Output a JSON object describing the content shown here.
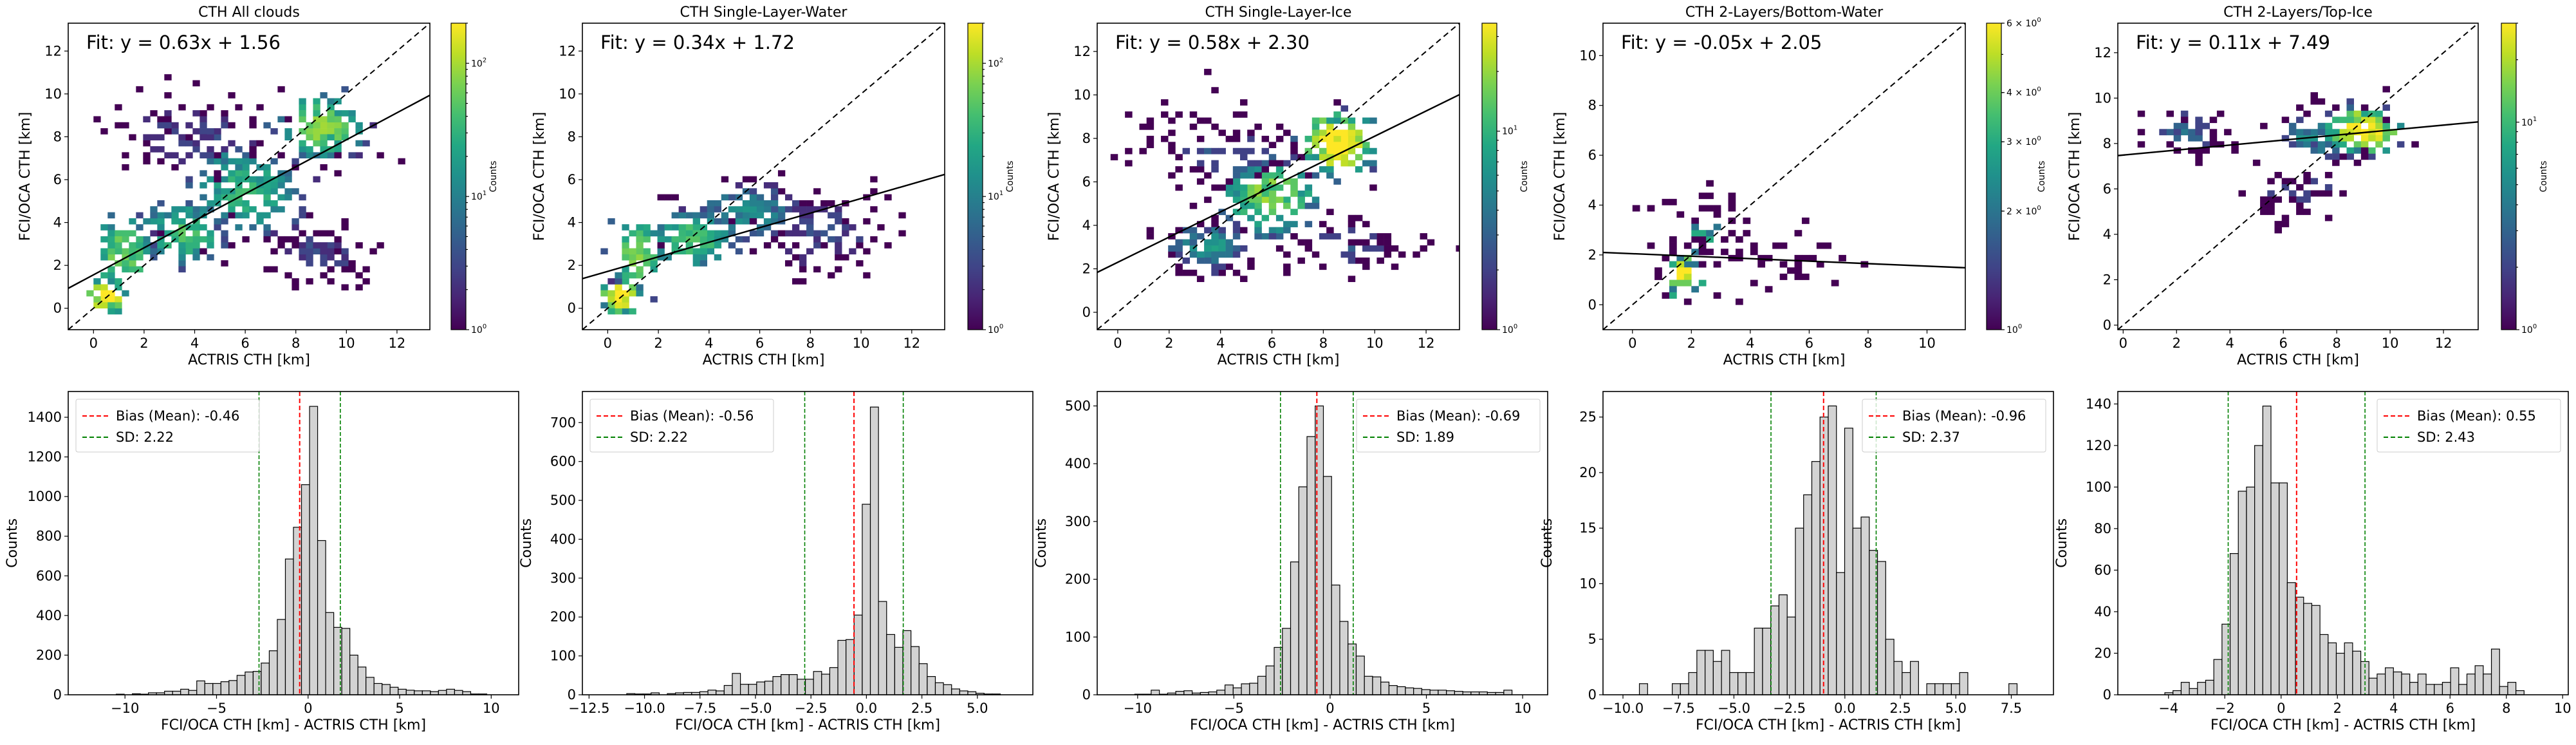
{
  "chart_data": [
    {
      "type": "heatmap",
      "title": "CTH All clouds",
      "xlabel": "ACTRIS CTH [km]",
      "ylabel": "FCI/OCA CTH [km]",
      "xlim": [
        -1.0,
        13.3
      ],
      "ylim": [
        -1.0,
        13.3
      ],
      "xticks": [
        0,
        2,
        4,
        6,
        8,
        10,
        12
      ],
      "yticks": [
        0,
        2,
        4,
        6,
        8,
        10,
        12
      ],
      "fit": {
        "slope": 0.63,
        "intercept": 1.56,
        "label": "Fit: y = 0.63x + 1.56"
      },
      "one_to_one_line": true,
      "colorbar": {
        "label": "Counts",
        "scale": "log",
        "min": 1,
        "max": 200,
        "ticks": [
          {
            "value": 1,
            "label": "10^0"
          },
          {
            "value": 10,
            "label": "10^1"
          },
          {
            "value": 100,
            "label": "10^2"
          }
        ]
      },
      "bin_size_km": 0.28,
      "clusters": [
        {
          "x": 0.5,
          "y": 0.6,
          "sx": 0.5,
          "sy": 0.6,
          "peak": 180,
          "n": 40
        },
        {
          "x": 1.2,
          "y": 2.5,
          "sx": 0.8,
          "sy": 1.2,
          "peak": 60,
          "n": 70
        },
        {
          "x": 3.5,
          "y": 3.5,
          "sx": 1.2,
          "sy": 1.0,
          "peak": 40,
          "n": 90
        },
        {
          "x": 6.0,
          "y": 5.5,
          "sx": 1.6,
          "sy": 1.5,
          "peak": 30,
          "n": 160
        },
        {
          "x": 9.0,
          "y": 8.5,
          "sx": 1.2,
          "sy": 1.0,
          "peak": 70,
          "n": 120
        },
        {
          "x": 4.0,
          "y": 8.0,
          "sx": 2.5,
          "sy": 1.4,
          "peak": 3,
          "n": 110
        },
        {
          "x": 9.0,
          "y": 2.5,
          "sx": 1.8,
          "sy": 1.2,
          "peak": 3,
          "n": 70
        }
      ]
    },
    {
      "type": "heatmap",
      "title": "CTH Single-Layer-Water",
      "xlabel": "ACTRIS CTH [km]",
      "ylabel": "FCI/OCA CTH [km]",
      "xlim": [
        -1.0,
        13.3
      ],
      "ylim": [
        -1.0,
        13.3
      ],
      "xticks": [
        0,
        2,
        4,
        6,
        8,
        10,
        12
      ],
      "yticks": [
        0,
        2,
        4,
        6,
        8,
        10,
        12
      ],
      "fit": {
        "slope": 0.34,
        "intercept": 1.72,
        "label": "Fit: y = 0.34x + 1.72"
      },
      "one_to_one_line": true,
      "colorbar": {
        "label": "Counts",
        "scale": "log",
        "min": 1,
        "max": 200,
        "ticks": [
          {
            "value": 1,
            "label": "10^0"
          },
          {
            "value": 10,
            "label": "10^1"
          },
          {
            "value": 100,
            "label": "10^2"
          }
        ]
      },
      "bin_size_km": 0.28,
      "clusters": [
        {
          "x": 0.5,
          "y": 0.6,
          "sx": 0.5,
          "sy": 0.6,
          "peak": 180,
          "n": 40
        },
        {
          "x": 1.2,
          "y": 2.5,
          "sx": 0.8,
          "sy": 1.2,
          "peak": 60,
          "n": 70
        },
        {
          "x": 3.3,
          "y": 3.2,
          "sx": 1.2,
          "sy": 0.9,
          "peak": 40,
          "n": 90
        },
        {
          "x": 5.5,
          "y": 4.5,
          "sx": 1.5,
          "sy": 1.0,
          "peak": 12,
          "n": 110
        },
        {
          "x": 8.5,
          "y": 3.5,
          "sx": 2.0,
          "sy": 1.5,
          "peak": 3,
          "n": 100
        }
      ]
    },
    {
      "type": "heatmap",
      "title": "CTH Single-Layer-Ice",
      "xlabel": "ACTRIS CTH [km]",
      "ylabel": "FCI/OCA CTH [km]",
      "xlim": [
        -0.8,
        13.3
      ],
      "ylim": [
        -0.8,
        13.3
      ],
      "xticks": [
        0,
        2,
        4,
        6,
        8,
        10,
        12
      ],
      "yticks": [
        0,
        2,
        4,
        6,
        8,
        10,
        12
      ],
      "fit": {
        "slope": 0.58,
        "intercept": 2.3,
        "label": "Fit: y = 0.58x + 2.30"
      },
      "one_to_one_line": true,
      "colorbar": {
        "label": "Counts",
        "scale": "log",
        "min": 1,
        "max": 35,
        "ticks": [
          {
            "value": 1,
            "label": "10^0"
          },
          {
            "value": 10,
            "label": "10^1"
          }
        ]
      },
      "bin_size_km": 0.28,
      "clusters": [
        {
          "x": 8.6,
          "y": 7.8,
          "sx": 1.0,
          "sy": 1.1,
          "peak": 35,
          "n": 120
        },
        {
          "x": 6.0,
          "y": 5.3,
          "sx": 1.4,
          "sy": 1.3,
          "peak": 18,
          "n": 130
        },
        {
          "x": 3.5,
          "y": 3.0,
          "sx": 1.2,
          "sy": 0.9,
          "peak": 6,
          "n": 80
        },
        {
          "x": 4.0,
          "y": 7.5,
          "sx": 2.5,
          "sy": 1.5,
          "peak": 2,
          "n": 90
        },
        {
          "x": 9.0,
          "y": 3.2,
          "sx": 2.0,
          "sy": 1.0,
          "peak": 2,
          "n": 60
        }
      ]
    },
    {
      "type": "heatmap",
      "title": "CTH 2-Layers/Bottom-Water",
      "xlabel": "ACTRIS CTH [km]",
      "ylabel": "FCI/OCA CTH [km]",
      "xlim": [
        -1.0,
        11.3
      ],
      "ylim": [
        -1.0,
        11.3
      ],
      "xticks": [
        0,
        2,
        4,
        6,
        8,
        10
      ],
      "yticks": [
        0,
        2,
        4,
        6,
        8,
        10
      ],
      "fit": {
        "slope": -0.05,
        "intercept": 2.05,
        "label": "Fit: y = -0.05x + 2.05"
      },
      "one_to_one_line": true,
      "colorbar": {
        "label": "Counts",
        "scale": "log",
        "min": 1,
        "max": 6,
        "ticks": [
          {
            "value": 1,
            "label": "10^0"
          },
          {
            "value": 2,
            "label": "2 × 10^0"
          },
          {
            "value": 3,
            "label": "3 × 10^0"
          },
          {
            "value": 4,
            "label": "4 × 10^0"
          },
          {
            "value": 6,
            "label": "6 × 10^0"
          }
        ]
      },
      "bin_size_km": 0.25,
      "clusters": [
        {
          "x": 1.8,
          "y": 1.2,
          "sx": 0.6,
          "sy": 0.8,
          "peak": 6,
          "n": 40
        },
        {
          "x": 2.5,
          "y": 3.0,
          "sx": 1.2,
          "sy": 1.2,
          "peak": 2,
          "n": 45
        },
        {
          "x": 5.5,
          "y": 1.8,
          "sx": 1.8,
          "sy": 1.2,
          "peak": 1,
          "n": 35
        }
      ]
    },
    {
      "type": "heatmap",
      "title": "CTH 2-Layers/Top-Ice",
      "xlabel": "ACTRIS CTH [km]",
      "ylabel": "FCI/OCA CTH [km]",
      "xlim": [
        -0.2,
        13.3
      ],
      "ylim": [
        -0.2,
        13.3
      ],
      "xticks": [
        0,
        2,
        4,
        6,
        8,
        10,
        12
      ],
      "yticks": [
        0,
        2,
        4,
        6,
        8,
        10,
        12
      ],
      "fit": {
        "slope": 0.11,
        "intercept": 7.49,
        "label": "Fit: y = 0.11x + 7.49"
      },
      "one_to_one_line": true,
      "colorbar": {
        "label": "Counts",
        "scale": "log",
        "min": 1,
        "max": 30,
        "ticks": [
          {
            "value": 1,
            "label": "10^0"
          },
          {
            "value": 10,
            "label": "10^1"
          }
        ]
      },
      "bin_size_km": 0.27,
      "clusters": [
        {
          "x": 9.0,
          "y": 8.6,
          "sx": 1.0,
          "sy": 0.8,
          "peak": 30,
          "n": 90
        },
        {
          "x": 7.5,
          "y": 8.3,
          "sx": 1.5,
          "sy": 0.8,
          "peak": 6,
          "n": 60
        },
        {
          "x": 2.5,
          "y": 8.5,
          "sx": 1.2,
          "sy": 0.8,
          "peak": 3,
          "n": 55
        },
        {
          "x": 6.5,
          "y": 5.8,
          "sx": 1.5,
          "sy": 0.8,
          "peak": 2,
          "n": 40
        }
      ]
    },
    {
      "type": "bar",
      "subtype": "histogram",
      "xlabel": "FCI/OCA CTH [km] - ACTRIS CTH [km]",
      "ylabel": "Counts",
      "xlim": [
        -13.1,
        11.5
      ],
      "ylim": [
        0,
        1530
      ],
      "xticks": [
        {
          "value": -10,
          "label": "−10"
        },
        {
          "value": -5,
          "label": "−5"
        },
        {
          "value": 0,
          "label": "0"
        },
        {
          "value": 5,
          "label": "5"
        },
        {
          "value": 10,
          "label": "10"
        }
      ],
      "yticks": [
        0,
        200,
        400,
        600,
        800,
        1000,
        1200,
        1400
      ],
      "bin_start": -11.8,
      "bin_width": 0.44,
      "values": [
        0,
        0,
        0,
        3,
        0,
        5,
        3,
        10,
        10,
        18,
        18,
        28,
        22,
        70,
        57,
        57,
        66,
        72,
        98,
        115,
        118,
        160,
        222,
        380,
        685,
        845,
        1060,
        1455,
        778,
        415,
        340,
        335,
        200,
        140,
        88,
        57,
        52,
        38,
        28,
        23,
        20,
        20,
        16,
        22,
        28,
        22,
        16,
        4,
        4,
        0
      ],
      "bias": -0.46,
      "sd": 2.22,
      "sd_lines": [
        -2.68,
        1.76
      ],
      "legend": {
        "position": "top-left",
        "entries": [
          {
            "label": "Bias (Mean): -0.46",
            "color": "#ff0000"
          },
          {
            "label": "SD: 2.22",
            "color": "#008000"
          }
        ]
      }
    },
    {
      "type": "bar",
      "subtype": "histogram",
      "xlabel": "FCI/OCA CTH [km] - ACTRIS CTH [km]",
      "ylabel": "Counts",
      "xlim": [
        -12.8,
        7.5
      ],
      "ylim": [
        0,
        780
      ],
      "xticks": [
        {
          "value": -12.5,
          "label": "−12.5"
        },
        {
          "value": -10,
          "label": "−10.0"
        },
        {
          "value": -7.5,
          "label": "−7.5"
        },
        {
          "value": -5,
          "label": "−5.0"
        },
        {
          "value": -2.5,
          "label": "−2.5"
        },
        {
          "value": 0,
          "label": "0.0"
        },
        {
          "value": 2.5,
          "label": "2.5"
        },
        {
          "value": 5,
          "label": "5.0"
        }
      ],
      "yticks": [
        0,
        100,
        200,
        300,
        400,
        500,
        600,
        700
      ],
      "bin_start": -11.9,
      "bin_width": 0.366,
      "values": [
        0,
        0,
        0,
        3,
        2,
        2,
        5,
        0,
        3,
        5,
        6,
        6,
        8,
        12,
        10,
        24,
        55,
        27,
        27,
        33,
        35,
        47,
        52,
        52,
        40,
        40,
        60,
        53,
        70,
        140,
        142,
        205,
        490,
        740,
        240,
        155,
        122,
        165,
        124,
        80,
        47,
        31,
        26,
        15,
        10,
        8,
        4,
        2,
        2,
        0
      ],
      "bias": -0.56,
      "sd": 2.22,
      "sd_lines": [
        -2.78,
        1.66
      ],
      "legend": {
        "position": "top-left",
        "entries": [
          {
            "label": "Bias (Mean): -0.56",
            "color": "#ff0000"
          },
          {
            "label": "SD: 2.22",
            "color": "#008000"
          }
        ]
      }
    },
    {
      "type": "bar",
      "subtype": "histogram",
      "xlabel": "FCI/OCA CTH [km] - ACTRIS CTH [km]",
      "ylabel": "Counts",
      "xlim": [
        -12.1,
        11.3
      ],
      "ylim": [
        0,
        525
      ],
      "xticks": [
        {
          "value": -10,
          "label": "−10"
        },
        {
          "value": -5,
          "label": "−5"
        },
        {
          "value": 0,
          "label": "0"
        },
        {
          "value": 5,
          "label": "5"
        },
        {
          "value": 10,
          "label": "10"
        }
      ],
      "yticks": [
        0,
        100,
        200,
        300,
        400,
        500
      ],
      "bin_start": -11.0,
      "bin_width": 0.426,
      "values": [
        0,
        0,
        1,
        1,
        8,
        1,
        3,
        6,
        7,
        3,
        4,
        5,
        8,
        17,
        12,
        19,
        20,
        32,
        50,
        82,
        115,
        230,
        360,
        447,
        500,
        378,
        190,
        127,
        88,
        67,
        32,
        31,
        22,
        16,
        14,
        12,
        11,
        9,
        8,
        8,
        7,
        6,
        5,
        5,
        5,
        4,
        4,
        8,
        0,
        0
      ],
      "bias": -0.69,
      "sd": 1.89,
      "sd_lines": [
        -2.58,
        1.2
      ],
      "legend": {
        "position": "top-right",
        "entries": [
          {
            "label": "Bias (Mean): -0.69",
            "color": "#ff0000"
          },
          {
            "label": "SD: 1.89",
            "color": "#008000"
          }
        ]
      }
    },
    {
      "type": "bar",
      "subtype": "histogram",
      "xlabel": "FCI/OCA CTH [km] - ACTRIS CTH [km]",
      "ylabel": "Counts",
      "xlim": [
        -10.9,
        9.4
      ],
      "ylim": [
        0,
        27.3
      ],
      "xticks": [
        {
          "value": -10,
          "label": "−10.0"
        },
        {
          "value": -7.5,
          "label": "−7.5"
        },
        {
          "value": -5,
          "label": "−5.0"
        },
        {
          "value": -2.5,
          "label": "−2.5"
        },
        {
          "value": 0,
          "label": "0.0"
        },
        {
          "value": 2.5,
          "label": "2.5"
        },
        {
          "value": 5,
          "label": "5.0"
        },
        {
          "value": 7.5,
          "label": "7.5"
        }
      ],
      "yticks": [
        0,
        5,
        10,
        15,
        20,
        25
      ],
      "bin_start": -10.0,
      "bin_width": 0.37,
      "values": [
        0,
        0,
        1,
        0,
        0,
        0,
        1,
        1,
        2,
        4,
        4,
        3,
        4,
        2,
        2,
        2,
        6,
        6,
        8,
        9,
        7,
        15,
        18,
        21,
        25,
        26,
        11,
        24,
        15,
        16,
        13,
        12,
        5,
        3,
        2,
        3,
        0,
        1,
        1,
        1,
        1,
        2,
        0,
        0,
        0,
        0,
        0,
        1,
        0,
        0
      ],
      "bias": -0.96,
      "sd": 2.37,
      "sd_lines": [
        -3.33,
        1.41
      ],
      "legend": {
        "position": "top-right",
        "entries": [
          {
            "label": "Bias (Mean): -0.96",
            "color": "#ff0000"
          },
          {
            "label": "SD: 2.37",
            "color": "#008000"
          }
        ]
      }
    },
    {
      "type": "bar",
      "subtype": "histogram",
      "xlabel": "FCI/OCA CTH [km] - ACTRIS CTH [km]",
      "ylabel": "Counts",
      "xlim": [
        -5.8,
        10.2
      ],
      "ylim": [
        0,
        146
      ],
      "xticks": [
        {
          "value": -4,
          "label": "−4"
        },
        {
          "value": -2,
          "label": "−2"
        },
        {
          "value": 0,
          "label": "0"
        },
        {
          "value": 2,
          "label": "2"
        },
        {
          "value": 4,
          "label": "4"
        },
        {
          "value": 6,
          "label": "6"
        },
        {
          "value": 8,
          "label": "8"
        },
        {
          "value": 10,
          "label": "10"
        }
      ],
      "yticks": [
        0,
        20,
        40,
        60,
        80,
        100,
        120,
        140
      ],
      "bin_start": -5.0,
      "bin_width": 0.29,
      "values": [
        0,
        0,
        0,
        1,
        2,
        6,
        3,
        6,
        7,
        17,
        34,
        68,
        98,
        100,
        120,
        139,
        102,
        102,
        54,
        47,
        44,
        43,
        29,
        25,
        20,
        25,
        21,
        16,
        8,
        10,
        13,
        11,
        10,
        6,
        10,
        5,
        5,
        6,
        13,
        5,
        10,
        14,
        10,
        22,
        4,
        6,
        2,
        0,
        0,
        0
      ],
      "bias": 0.55,
      "sd": 2.43,
      "sd_lines": [
        -1.88,
        2.98
      ],
      "legend": {
        "position": "top-right",
        "entries": [
          {
            "label": "Bias (Mean): 0.55",
            "color": "#ff0000"
          },
          {
            "label": "SD: 2.43",
            "color": "#008000"
          }
        ]
      }
    }
  ],
  "colors": {
    "bar_fill": "#d3d3d3",
    "bias_line": "#ff0000",
    "sd_line": "#008000",
    "colormap": "viridis"
  }
}
